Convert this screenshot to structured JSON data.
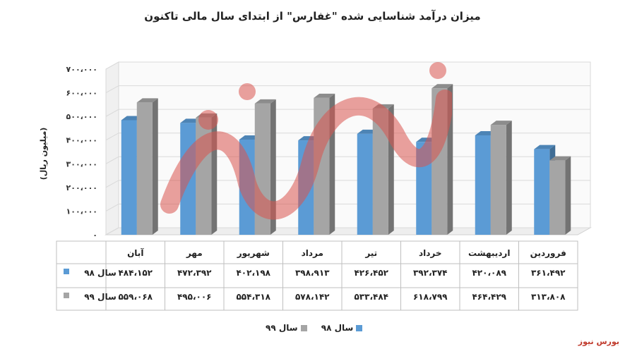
{
  "title": "میزان درآمد شناسایی شده \"غفارس\" از ابتدای سال مالی تاکنون",
  "brand": "بورس نیوز",
  "colors": {
    "s98": "#5B9BD5",
    "s99": "#A5A5A5",
    "watermark": "#d9534f"
  },
  "chart_data": {
    "type": "bar",
    "ylabel": "(میلیون ریال)",
    "ylim": [
      0,
      700000
    ],
    "yticks": [
      "۰",
      "۱۰۰،۰۰۰",
      "۲۰۰،۰۰۰",
      "۳۰۰،۰۰۰",
      "۴۰۰،۰۰۰",
      "۵۰۰،۰۰۰",
      "۶۰۰،۰۰۰",
      "۷۰۰،۰۰۰"
    ],
    "categories": [
      "فروردین",
      "اردیبهشت",
      "خرداد",
      "تیر",
      "مرداد",
      "شهریور",
      "مهر",
      "آبان"
    ],
    "series": [
      {
        "name": "سال ۹۸",
        "values": [
          361492,
          420089,
          392374,
          426452,
          398913,
          402198,
          472392,
          484152
        ],
        "labels": [
          "۳۶۱،۴۹۲",
          "۴۲۰،۰۸۹",
          "۳۹۲،۳۷۴",
          "۴۲۶،۴۵۲",
          "۳۹۸،۹۱۳",
          "۴۰۲،۱۹۸",
          "۴۷۲،۳۹۲",
          "۴۸۴،۱۵۲"
        ]
      },
      {
        "name": "سال ۹۹",
        "values": [
          313808,
          464429,
          618799,
          533484,
          578142,
          554318,
          495006,
          559068
        ],
        "labels": [
          "۳۱۳،۸۰۸",
          "۴۶۴،۴۲۹",
          "۶۱۸،۷۹۹",
          "۵۳۳،۴۸۴",
          "۵۷۸،۱۴۲",
          "۵۵۴،۳۱۸",
          "۴۹۵،۰۰۶",
          "۵۵۹،۰۶۸"
        ]
      }
    ],
    "legend_position": "bottom",
    "grid": true
  }
}
